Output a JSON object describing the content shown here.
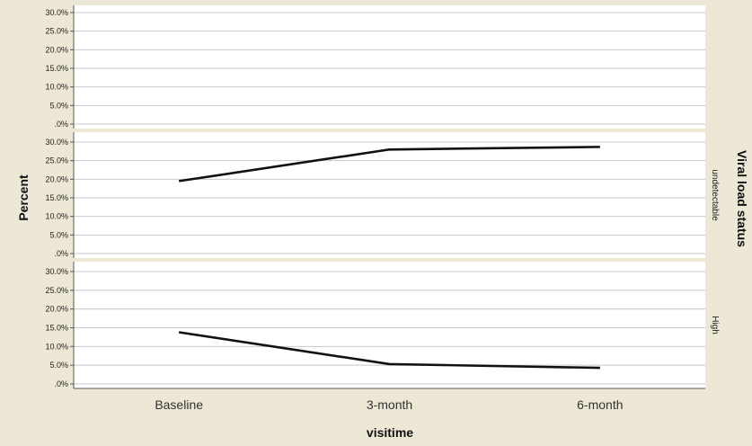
{
  "chart_data": {
    "type": "line",
    "xlabel": "visitime",
    "ylabel": "Percent",
    "facet_title": "Viral load status",
    "categories": [
      "Baseline",
      "3-month",
      "6-month"
    ],
    "ylim": [
      0,
      30
    ],
    "yticks": [
      ".0%",
      "5.0%",
      "10.0%",
      "15.0%",
      "20.0%",
      "25.0%",
      "30.0%"
    ],
    "grid": true,
    "panels": [
      {
        "label": "",
        "values": []
      },
      {
        "label": "undetectable",
        "values": [
          19.5,
          28.0,
          28.7
        ]
      },
      {
        "label": "High",
        "values": [
          13.8,
          5.3,
          4.3
        ]
      }
    ]
  },
  "colors": {
    "background": "#ede7d5",
    "plot": "#ffffff",
    "grid": "#c8c8c8",
    "line": "#111111",
    "axis": "#555555"
  }
}
